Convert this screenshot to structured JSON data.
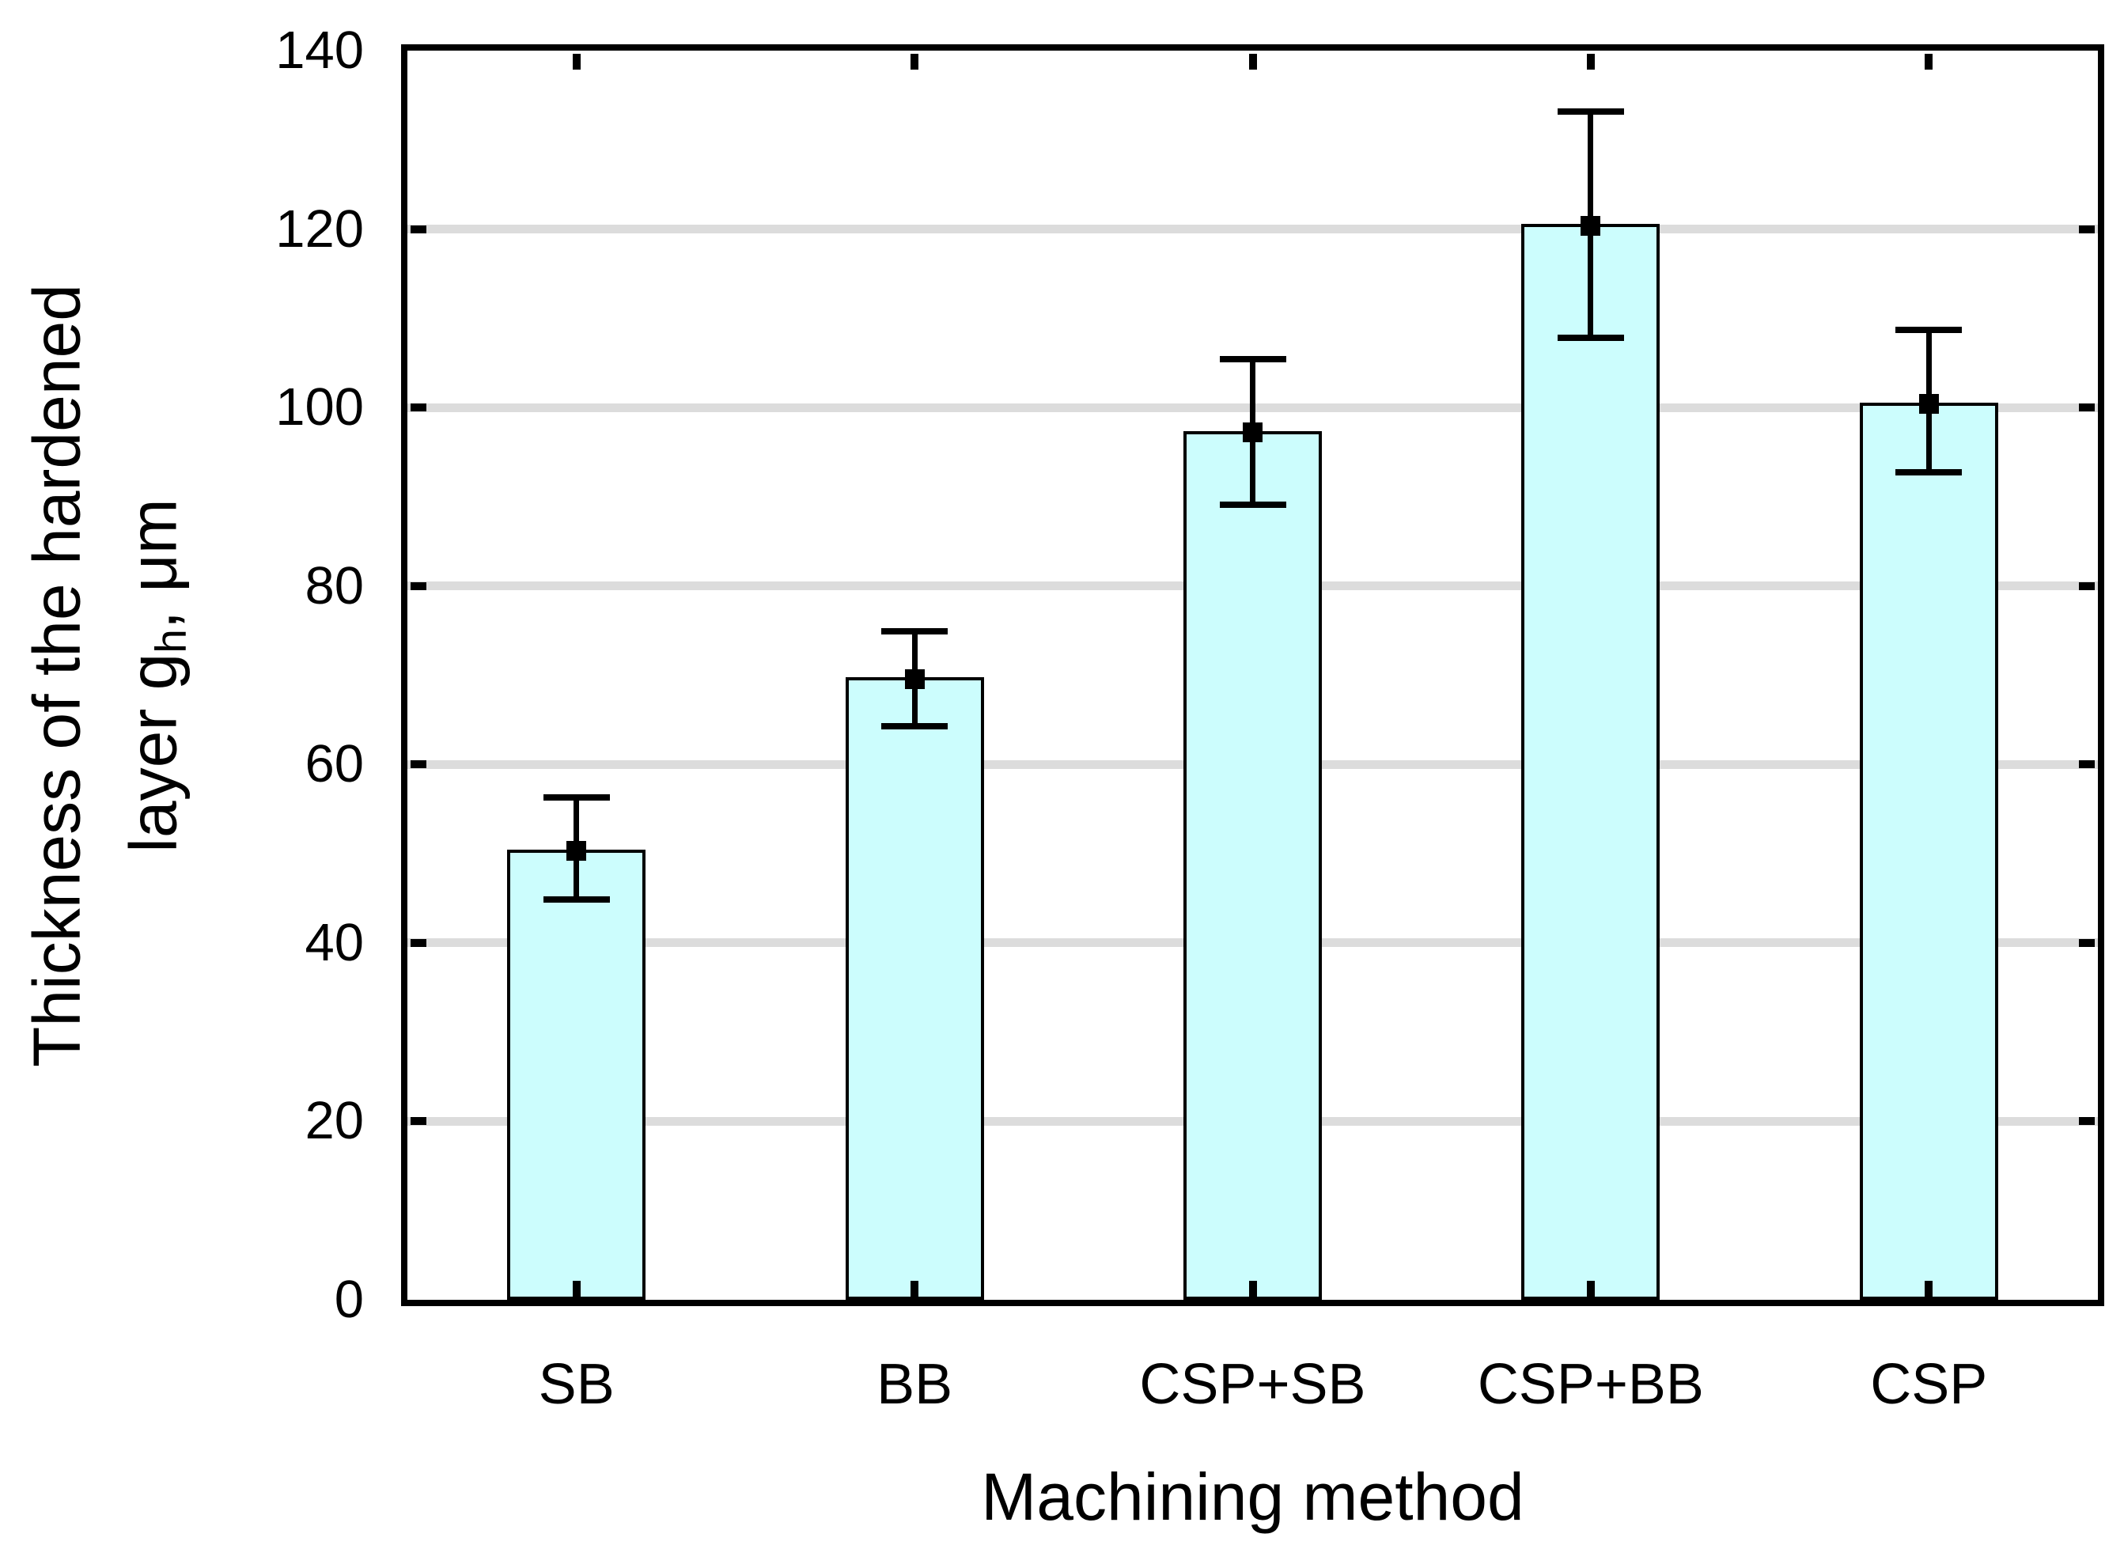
{
  "figure": {
    "background": "#ffffff"
  },
  "chart_data": {
    "type": "bar",
    "title": "",
    "xlabel": "Machining method",
    "ylabel_line1": "Thickness of the hardened",
    "ylabel_line2_pre": "layer g",
    "ylabel_line2_sub": "h",
    "ylabel_line2_post": ", μm",
    "categories": [
      "SB",
      "BB",
      "CSP+SB",
      "CSP+BB",
      "CSP"
    ],
    "values": [
      50.3,
      69.6,
      97.2,
      120.4,
      100.4
    ],
    "error_low": [
      44.9,
      64.3,
      89.1,
      107.8,
      92.7
    ],
    "error_high": [
      56.3,
      74.9,
      105.4,
      133.2,
      108.7
    ],
    "ylim": [
      0,
      140
    ],
    "yticks": [
      0,
      20,
      40,
      60,
      80,
      100,
      120,
      140
    ],
    "grid": "horizontal-only",
    "legend": "none",
    "marker_shape": "filled-square",
    "colors": {
      "bar_fill": "#ccfdfd",
      "bar_edge": "#000000",
      "gridline": "#dcdcdc",
      "frame": "#000000",
      "error": "#000000",
      "marker": "#000000",
      "text": "#000000",
      "background": "#ffffff"
    }
  }
}
